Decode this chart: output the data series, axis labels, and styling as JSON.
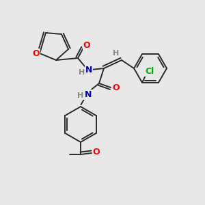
{
  "background_color": "#e8e8e8",
  "bond_color": "#2a2a2a",
  "atom_colors": {
    "O": "#ff0000",
    "N": "#0000cc",
    "Cl": "#00aa00",
    "H": "#888888",
    "C": "#2a2a2a"
  }
}
